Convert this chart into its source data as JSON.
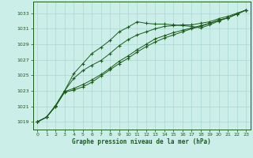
{
  "title": "Graphe pression niveau de la mer (hPa)",
  "background_color": "#cceee8",
  "grid_color": "#aad8d0",
  "line_color": "#1a5c1a",
  "marker_color": "#1a5c1a",
  "xlim": [
    -0.5,
    23.5
  ],
  "ylim": [
    1018.0,
    1034.5
  ],
  "yticks": [
    1019,
    1021,
    1023,
    1025,
    1027,
    1029,
    1031,
    1033
  ],
  "xticks": [
    0,
    1,
    2,
    3,
    4,
    5,
    6,
    7,
    8,
    9,
    10,
    11,
    12,
    13,
    14,
    15,
    16,
    17,
    18,
    19,
    20,
    21,
    22,
    23
  ],
  "series": [
    [
      1019.0,
      1019.6,
      1021.1,
      1023.0,
      1025.2,
      1026.5,
      1027.8,
      1028.6,
      1029.5,
      1030.6,
      1031.2,
      1031.9,
      1031.7,
      1031.6,
      1031.6,
      1031.5,
      1031.4,
      1031.3,
      1031.1,
      1031.5,
      1032.0,
      1032.4,
      1032.9,
      1033.4
    ],
    [
      1019.0,
      1019.6,
      1021.1,
      1023.0,
      1024.6,
      1025.6,
      1026.3,
      1026.9,
      1027.8,
      1028.8,
      1029.6,
      1030.2,
      1030.6,
      1031.0,
      1031.3,
      1031.4,
      1031.5,
      1031.5,
      1031.7,
      1031.9,
      1032.3,
      1032.6,
      1033.0,
      1033.4
    ],
    [
      1019.0,
      1019.6,
      1021.0,
      1022.9,
      1023.3,
      1023.8,
      1024.4,
      1025.1,
      1025.9,
      1026.8,
      1027.5,
      1028.3,
      1029.0,
      1029.7,
      1030.1,
      1030.5,
      1030.8,
      1031.1,
      1031.4,
      1031.7,
      1032.1,
      1032.4,
      1032.9,
      1033.4
    ],
    [
      1019.0,
      1019.6,
      1021.0,
      1022.8,
      1023.1,
      1023.5,
      1024.1,
      1024.9,
      1025.7,
      1026.5,
      1027.2,
      1028.0,
      1028.7,
      1029.3,
      1029.8,
      1030.2,
      1030.6,
      1031.0,
      1031.3,
      1031.7,
      1032.1,
      1032.4,
      1032.9,
      1033.4
    ]
  ]
}
